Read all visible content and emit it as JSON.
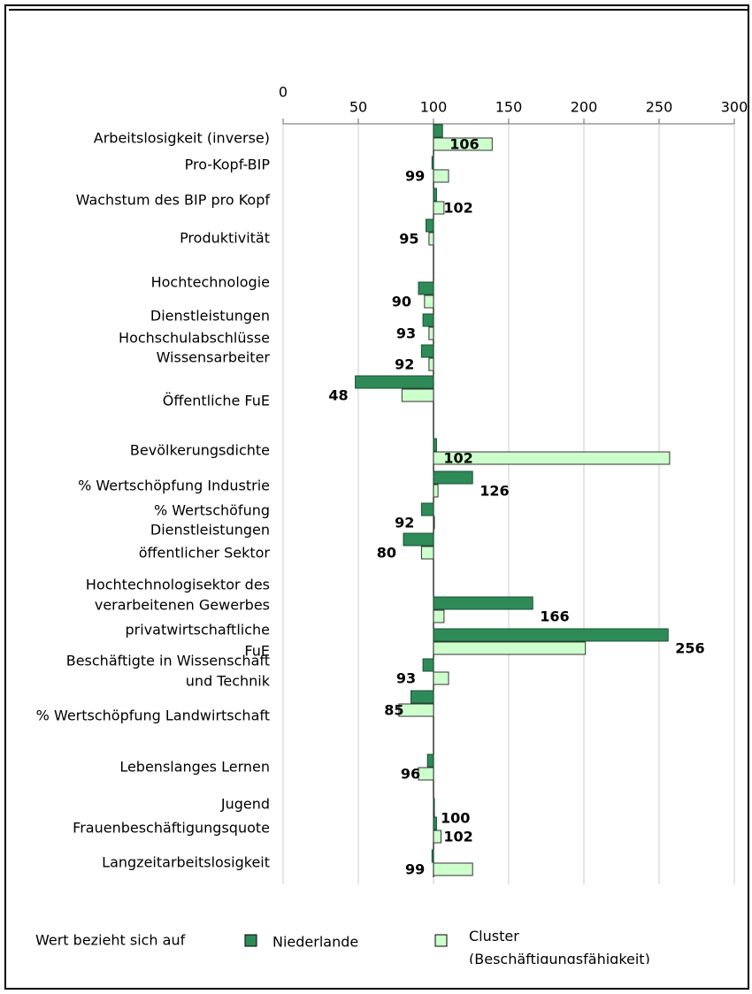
{
  "chart_data": {
    "type": "hbar",
    "categories": [
      [
        "Arbeitslosigkeit (inverse)"
      ],
      [
        "Pro-Kopf-BIP"
      ],
      [
        "Wachstum des BIP pro Kopf"
      ],
      [
        "Produktivität"
      ],
      [
        "Hochtechnologie",
        "Dienstleistungen"
      ],
      [
        "Hochschulabschlüsse"
      ],
      [
        "Wissensarbeiter"
      ],
      [
        "Öffentliche FuE"
      ],
      [
        "Bevölkerungsdichte"
      ],
      [
        "% Wertschöpfung Industrie"
      ],
      [
        "% Wertschöfung",
        "Dienstleistungen"
      ],
      [
        "öffentlicher Sektor"
      ],
      [
        "Hochtechnologisektor des",
        "verarbeitenen Gewerbes"
      ],
      [
        "privatwirtschaftliche",
        "FuE"
      ],
      [
        "Beschäftigte in  Wissenschaft",
        "und Technik"
      ],
      [
        "% Wertschöpfung Landwirtschaft"
      ],
      [
        "Lebenslanges Lernen"
      ],
      [
        "Jugend"
      ],
      [
        "Frauenbeschäftigungsquote"
      ],
      [
        "Langzeitarbeitslosigkeit"
      ]
    ],
    "series": [
      {
        "name": "Niederlande",
        "color": "#2e8b57",
        "values": [
          106,
          99,
          102,
          95,
          90,
          93,
          92,
          48,
          102,
          126,
          92,
          80,
          166,
          256,
          93,
          85,
          96,
          100,
          102,
          99
        ]
      },
      {
        "name": "Cluster (Beschäftigungsfähigkeit)",
        "color": "#ccffcc",
        "values": [
          139,
          110,
          107,
          97,
          94,
          97,
          97,
          79,
          257,
          103,
          100,
          92,
          107,
          201,
          110,
          77,
          90,
          100,
          105,
          126
        ]
      }
    ],
    "xlim": [
      0,
      300
    ],
    "xticks": [
      0,
      50,
      100,
      150,
      200,
      250,
      300
    ],
    "reference_line": 100,
    "grid": true,
    "legend_title": "Wert bezieht sich auf"
  }
}
